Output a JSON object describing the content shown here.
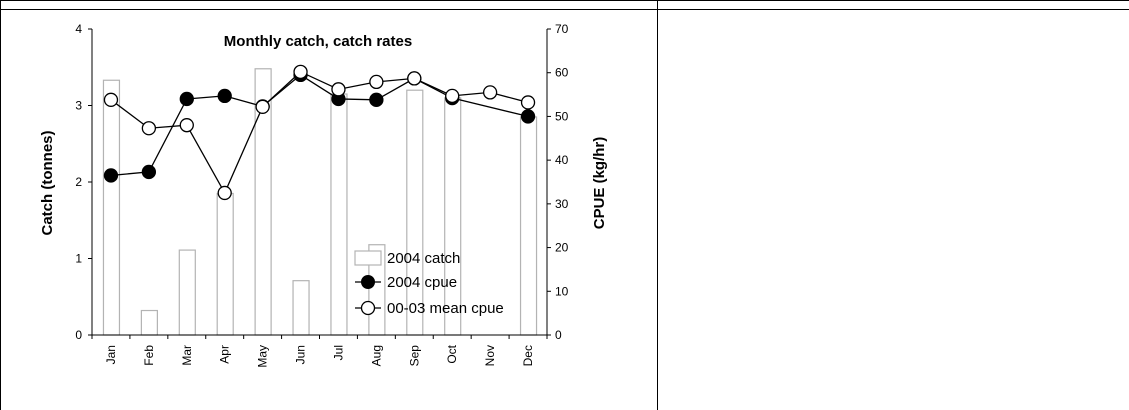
{
  "chart_data": {
    "type": "bar",
    "title": "Monthly catch, catch rates",
    "xlabel": "",
    "ylabel": "Catch (tonnes)",
    "y2label": "CPUE (kg/hr)",
    "categories": [
      "Jan",
      "Feb",
      "Mar",
      "Apr",
      "May",
      "Jun",
      "Jul",
      "Aug",
      "Sep",
      "Oct",
      "Nov",
      "Dec"
    ],
    "ylim": [
      0,
      4
    ],
    "yticks": [
      "0",
      "1",
      "2",
      "3",
      "4"
    ],
    "y2lim": [
      0,
      70
    ],
    "y2ticks": [
      "0",
      "10",
      "20",
      "30",
      "40",
      "50",
      "60",
      "70"
    ],
    "grid": false,
    "legend_position": "bottom-right",
    "series": [
      {
        "name": "2004 catch",
        "type": "bar",
        "axis": "left",
        "values": [
          3.33,
          0.32,
          1.11,
          1.85,
          3.48,
          0.71,
          3.15,
          1.18,
          3.2,
          3.1,
          0.0,
          2.85
        ],
        "color": "#b3b3b3"
      },
      {
        "name": "2004 cpue",
        "type": "line",
        "axis": "right",
        "marker": "filled-circle",
        "values": [
          36.5,
          37.3,
          54.0,
          54.7,
          52.3,
          59.5,
          54.0,
          53.8,
          58.7,
          54.2,
          null,
          50.0
        ],
        "color": "#000000"
      },
      {
        "name": "00-03 mean cpue",
        "type": "line",
        "axis": "right",
        "marker": "open-circle",
        "values": [
          53.8,
          47.3,
          48.0,
          32.5,
          52.2,
          60.2,
          56.2,
          57.9,
          58.7,
          54.7,
          55.5,
          53.2
        ],
        "color": "#000000"
      }
    ]
  }
}
